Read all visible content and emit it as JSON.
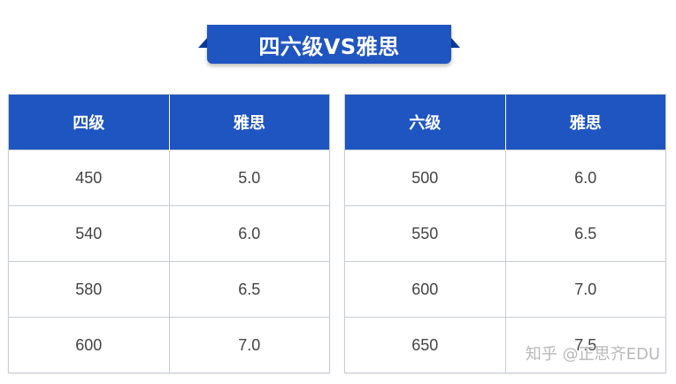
{
  "title": "四六级VS雅思",
  "left_table": {
    "headers": [
      "四级",
      "雅思"
    ],
    "rows": [
      [
        "450",
        "5.0"
      ],
      [
        "540",
        "6.0"
      ],
      [
        "580",
        "6.5"
      ],
      [
        "600",
        "7.0"
      ]
    ]
  },
  "right_table": {
    "headers": [
      "六级",
      "雅思"
    ],
    "rows": [
      [
        "500",
        "6.0"
      ],
      [
        "550",
        "6.5"
      ],
      [
        "600",
        "7.0"
      ],
      [
        "650",
        "7.5"
      ]
    ]
  },
  "watermark": "知乎 @正思齐EDU",
  "colors": {
    "header_blue": "#1f55c0",
    "banner_dark": "#0d3b9a",
    "border": "#c8cdd6",
    "cell_text": "#444444"
  }
}
